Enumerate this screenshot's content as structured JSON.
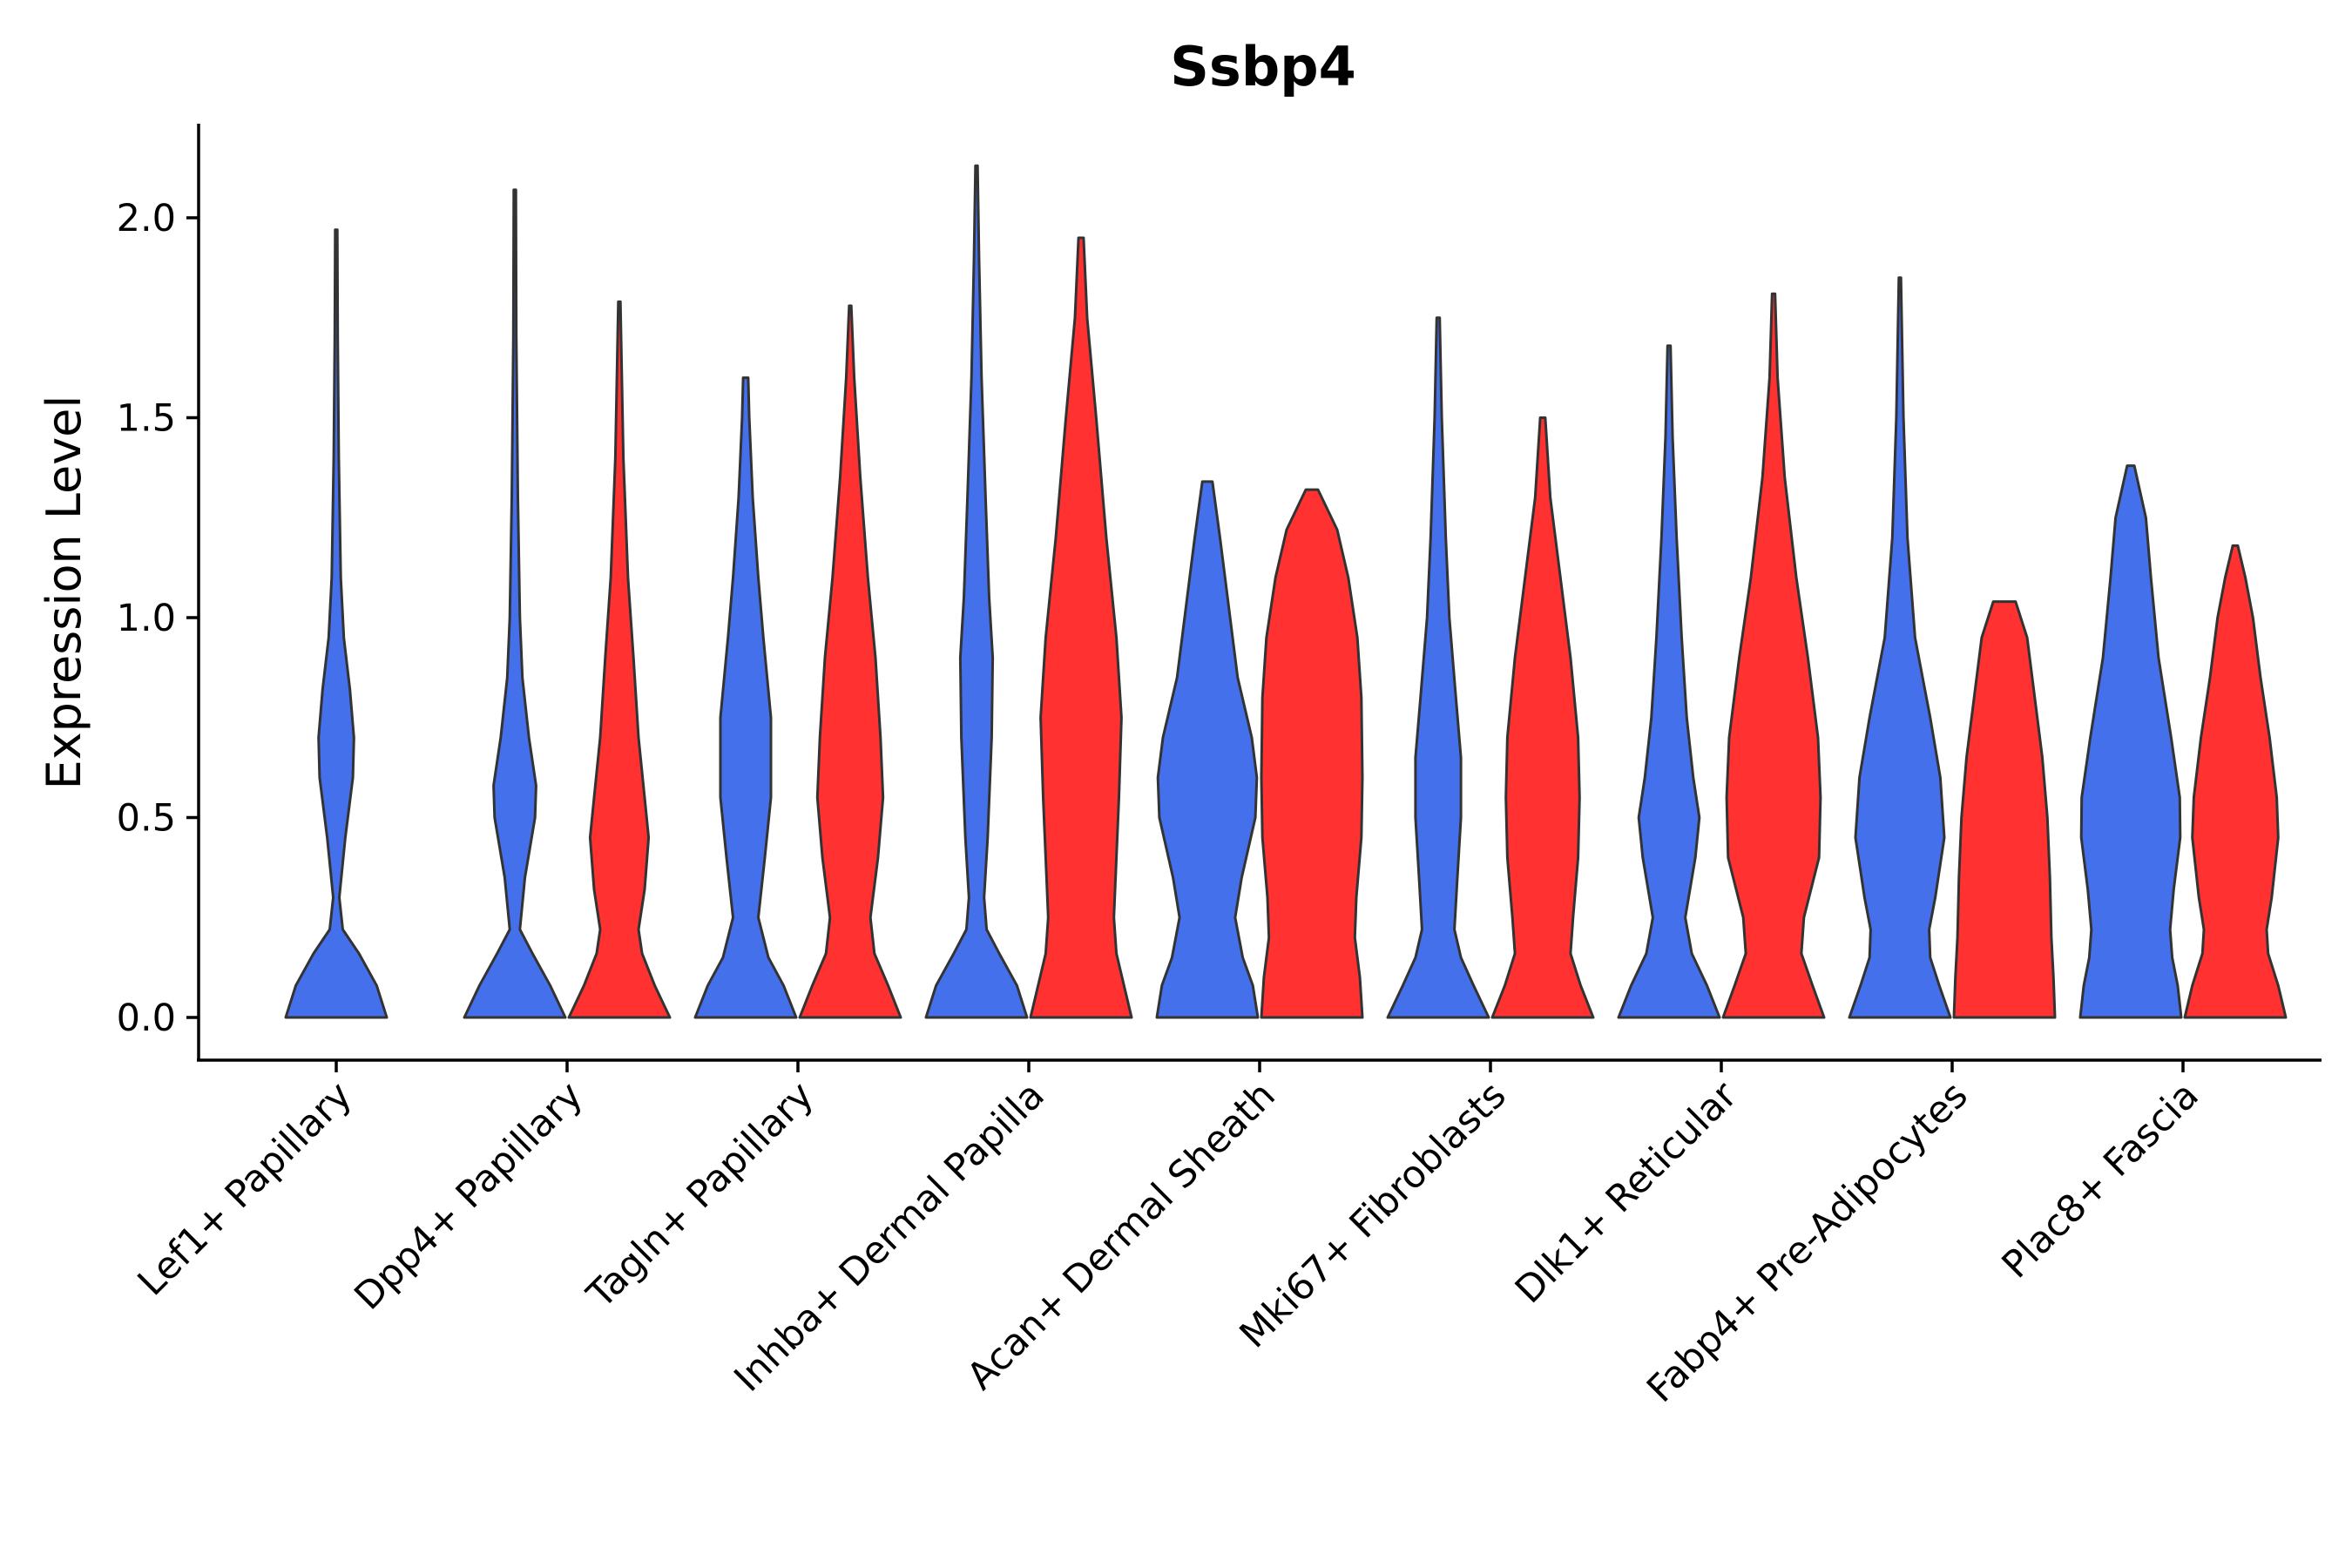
{
  "chart_data": {
    "type": "violin",
    "title": "Ssbp4",
    "xlabel": "",
    "ylabel": "Expression Level",
    "ylim": [
      -0.1,
      2.24
    ],
    "yticks": [
      "0.0",
      "0.5",
      "1.0",
      "1.5",
      "2.0"
    ],
    "categories": [
      "Lef1+ Papillary",
      "Dpp4+ Papillary",
      "Tagln+ Papillary",
      "Inhba+ Dermal Papilla",
      "Acan+ Dermal Sheath",
      "Mki67+ Fibroblasts",
      "Dlk1+ Reticular",
      "Fabp4+ Pre-Adipocytes",
      "Plac8+ Fascia"
    ],
    "series": [
      {
        "name": "group-blue",
        "color": "#4570EC",
        "violins": [
          {
            "max": 1.97,
            "profile": [
              [
                0,
                1.0
              ],
              [
                0.08,
                0.8
              ],
              [
                0.16,
                0.45
              ],
              [
                0.22,
                0.13
              ],
              [
                0.3,
                0.06
              ],
              [
                0.45,
                0.18
              ],
              [
                0.6,
                0.33
              ],
              [
                0.7,
                0.35
              ],
              [
                0.82,
                0.27
              ],
              [
                0.95,
                0.15
              ],
              [
                1.1,
                0.09
              ],
              [
                1.4,
                0.05
              ],
              [
                1.7,
                0.03
              ],
              [
                1.97,
                0.02
              ]
            ]
          },
          {
            "max": 2.07,
            "profile": [
              [
                0,
                1.0
              ],
              [
                0.08,
                0.7
              ],
              [
                0.16,
                0.35
              ],
              [
                0.22,
                0.1
              ],
              [
                0.35,
                0.2
              ],
              [
                0.5,
                0.4
              ],
              [
                0.58,
                0.42
              ],
              [
                0.7,
                0.28
              ],
              [
                0.85,
                0.15
              ],
              [
                1.0,
                0.1
              ],
              [
                1.3,
                0.06
              ],
              [
                1.7,
                0.03
              ],
              [
                2.07,
                0.02
              ]
            ]
          },
          {
            "max": 1.6,
            "profile": [
              [
                0,
                1.0
              ],
              [
                0.08,
                0.75
              ],
              [
                0.15,
                0.45
              ],
              [
                0.25,
                0.25
              ],
              [
                0.4,
                0.38
              ],
              [
                0.55,
                0.5
              ],
              [
                0.75,
                0.5
              ],
              [
                0.95,
                0.35
              ],
              [
                1.1,
                0.25
              ],
              [
                1.3,
                0.14
              ],
              [
                1.5,
                0.07
              ],
              [
                1.6,
                0.05
              ]
            ]
          },
          {
            "max": 2.13,
            "profile": [
              [
                0,
                1.0
              ],
              [
                0.08,
                0.8
              ],
              [
                0.16,
                0.45
              ],
              [
                0.22,
                0.2
              ],
              [
                0.3,
                0.15
              ],
              [
                0.45,
                0.22
              ],
              [
                0.7,
                0.3
              ],
              [
                0.9,
                0.32
              ],
              [
                1.05,
                0.25
              ],
              [
                1.3,
                0.18
              ],
              [
                1.6,
                0.1
              ],
              [
                1.9,
                0.05
              ],
              [
                2.13,
                0.02
              ]
            ]
          },
          {
            "max": 1.34,
            "profile": [
              [
                0,
                1.0
              ],
              [
                0.08,
                0.9
              ],
              [
                0.15,
                0.7
              ],
              [
                0.25,
                0.55
              ],
              [
                0.35,
                0.68
              ],
              [
                0.5,
                0.95
              ],
              [
                0.6,
                0.98
              ],
              [
                0.7,
                0.88
              ],
              [
                0.85,
                0.6
              ],
              [
                1.05,
                0.4
              ],
              [
                1.2,
                0.25
              ],
              [
                1.34,
                0.1
              ]
            ]
          },
          {
            "max": 1.75,
            "profile": [
              [
                0,
                1.0
              ],
              [
                0.08,
                0.7
              ],
              [
                0.15,
                0.45
              ],
              [
                0.22,
                0.32
              ],
              [
                0.35,
                0.38
              ],
              [
                0.5,
                0.45
              ],
              [
                0.65,
                0.45
              ],
              [
                0.8,
                0.35
              ],
              [
                1.0,
                0.22
              ],
              [
                1.2,
                0.15
              ],
              [
                1.5,
                0.07
              ],
              [
                1.75,
                0.03
              ]
            ]
          },
          {
            "max": 1.68,
            "profile": [
              [
                0,
                1.0
              ],
              [
                0.08,
                0.75
              ],
              [
                0.16,
                0.45
              ],
              [
                0.25,
                0.32
              ],
              [
                0.4,
                0.52
              ],
              [
                0.5,
                0.6
              ],
              [
                0.6,
                0.48
              ],
              [
                0.75,
                0.35
              ],
              [
                0.95,
                0.25
              ],
              [
                1.2,
                0.15
              ],
              [
                1.45,
                0.07
              ],
              [
                1.68,
                0.03
              ]
            ]
          },
          {
            "max": 1.85,
            "profile": [
              [
                0,
                1.0
              ],
              [
                0.08,
                0.78
              ],
              [
                0.15,
                0.6
              ],
              [
                0.22,
                0.58
              ],
              [
                0.3,
                0.7
              ],
              [
                0.45,
                0.88
              ],
              [
                0.6,
                0.8
              ],
              [
                0.75,
                0.6
              ],
              [
                0.95,
                0.3
              ],
              [
                1.2,
                0.15
              ],
              [
                1.5,
                0.07
              ],
              [
                1.85,
                0.02
              ]
            ]
          },
          {
            "max": 1.38,
            "profile": [
              [
                0,
                1.0
              ],
              [
                0.08,
                0.93
              ],
              [
                0.15,
                0.82
              ],
              [
                0.22,
                0.78
              ],
              [
                0.32,
                0.85
              ],
              [
                0.45,
                0.98
              ],
              [
                0.55,
                0.97
              ],
              [
                0.7,
                0.8
              ],
              [
                0.9,
                0.55
              ],
              [
                1.1,
                0.4
              ],
              [
                1.25,
                0.3
              ],
              [
                1.38,
                0.07
              ]
            ]
          }
        ]
      },
      {
        "name": "group-red",
        "color": "#FF3131",
        "violins": [
          null,
          {
            "max": 1.79,
            "profile": [
              [
                0,
                1.0
              ],
              [
                0.08,
                0.7
              ],
              [
                0.16,
                0.45
              ],
              [
                0.22,
                0.38
              ],
              [
                0.32,
                0.5
              ],
              [
                0.45,
                0.58
              ],
              [
                0.55,
                0.5
              ],
              [
                0.7,
                0.38
              ],
              [
                0.9,
                0.28
              ],
              [
                1.1,
                0.17
              ],
              [
                1.4,
                0.08
              ],
              [
                1.79,
                0.02
              ]
            ]
          },
          {
            "max": 1.78,
            "profile": [
              [
                0,
                1.0
              ],
              [
                0.08,
                0.75
              ],
              [
                0.16,
                0.48
              ],
              [
                0.25,
                0.4
              ],
              [
                0.4,
                0.55
              ],
              [
                0.55,
                0.65
              ],
              [
                0.7,
                0.6
              ],
              [
                0.9,
                0.5
              ],
              [
                1.1,
                0.35
              ],
              [
                1.35,
                0.2
              ],
              [
                1.6,
                0.08
              ],
              [
                1.78,
                0.02
              ]
            ]
          },
          {
            "max": 1.95,
            "profile": [
              [
                0,
                1.0
              ],
              [
                0.08,
                0.85
              ],
              [
                0.16,
                0.7
              ],
              [
                0.25,
                0.65
              ],
              [
                0.4,
                0.7
              ],
              [
                0.55,
                0.75
              ],
              [
                0.75,
                0.8
              ],
              [
                0.95,
                0.7
              ],
              [
                1.2,
                0.5
              ],
              [
                1.5,
                0.3
              ],
              [
                1.75,
                0.12
              ],
              [
                1.95,
                0.05
              ]
            ]
          },
          {
            "max": 1.32,
            "profile": [
              [
                0,
                1.0
              ],
              [
                0.1,
                0.95
              ],
              [
                0.2,
                0.85
              ],
              [
                0.3,
                0.88
              ],
              [
                0.45,
                0.98
              ],
              [
                0.6,
                1.0
              ],
              [
                0.8,
                0.98
              ],
              [
                0.95,
                0.9
              ],
              [
                1.1,
                0.72
              ],
              [
                1.22,
                0.5
              ],
              [
                1.32,
                0.12
              ]
            ]
          },
          {
            "max": 1.5,
            "profile": [
              [
                0,
                1.0
              ],
              [
                0.08,
                0.75
              ],
              [
                0.16,
                0.55
              ],
              [
                0.25,
                0.6
              ],
              [
                0.4,
                0.7
              ],
              [
                0.55,
                0.73
              ],
              [
                0.7,
                0.7
              ],
              [
                0.9,
                0.55
              ],
              [
                1.1,
                0.35
              ],
              [
                1.3,
                0.15
              ],
              [
                1.5,
                0.05
              ]
            ]
          },
          {
            "max": 1.81,
            "profile": [
              [
                0,
                1.0
              ],
              [
                0.08,
                0.77
              ],
              [
                0.16,
                0.55
              ],
              [
                0.25,
                0.6
              ],
              [
                0.4,
                0.9
              ],
              [
                0.55,
                0.93
              ],
              [
                0.7,
                0.88
              ],
              [
                0.9,
                0.68
              ],
              [
                1.1,
                0.45
              ],
              [
                1.35,
                0.22
              ],
              [
                1.6,
                0.08
              ],
              [
                1.81,
                0.03
              ]
            ]
          },
          {
            "max": 1.04,
            "profile": [
              [
                0,
                1.0
              ],
              [
                0.1,
                0.97
              ],
              [
                0.2,
                0.93
              ],
              [
                0.35,
                0.9
              ],
              [
                0.5,
                0.85
              ],
              [
                0.65,
                0.75
              ],
              [
                0.8,
                0.6
              ],
              [
                0.95,
                0.45
              ],
              [
                1.04,
                0.22
              ]
            ]
          },
          {
            "max": 1.18,
            "profile": [
              [
                0,
                1.0
              ],
              [
                0.08,
                0.85
              ],
              [
                0.16,
                0.65
              ],
              [
                0.22,
                0.62
              ],
              [
                0.3,
                0.72
              ],
              [
                0.45,
                0.85
              ],
              [
                0.55,
                0.82
              ],
              [
                0.7,
                0.68
              ],
              [
                0.85,
                0.5
              ],
              [
                1.0,
                0.35
              ],
              [
                1.1,
                0.2
              ],
              [
                1.18,
                0.05
              ]
            ]
          }
        ]
      }
    ]
  }
}
